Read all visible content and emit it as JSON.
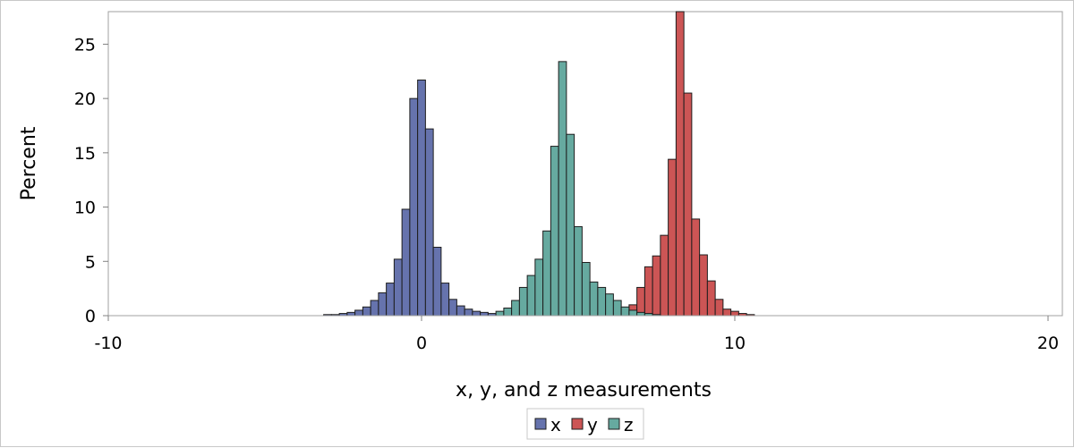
{
  "chart_data": {
    "type": "bar",
    "xlabel": "x, y, and z measurements",
    "ylabel": "Percent",
    "xlim": [
      -10,
      20
    ],
    "ylim": [
      0,
      28
    ],
    "x_ticks": [
      -10,
      0,
      10,
      20
    ],
    "y_ticks": [
      0,
      5,
      10,
      15,
      20,
      25
    ],
    "bin_width": 0.25,
    "legend_position": "bottom-center",
    "grid": false,
    "series": [
      {
        "name": "x",
        "color": "#6673ad",
        "bins": [
          {
            "x": -3.0,
            "y": 0.1
          },
          {
            "x": -2.75,
            "y": 0.1
          },
          {
            "x": -2.5,
            "y": 0.2
          },
          {
            "x": -2.25,
            "y": 0.3
          },
          {
            "x": -2.0,
            "y": 0.5
          },
          {
            "x": -1.75,
            "y": 0.8
          },
          {
            "x": -1.5,
            "y": 1.4
          },
          {
            "x": -1.25,
            "y": 2.1
          },
          {
            "x": -1.0,
            "y": 3.0
          },
          {
            "x": -0.75,
            "y": 5.2
          },
          {
            "x": -0.5,
            "y": 9.8
          },
          {
            "x": -0.25,
            "y": 20.0
          },
          {
            "x": 0.0,
            "y": 21.7
          },
          {
            "x": 0.25,
            "y": 17.2
          },
          {
            "x": 0.5,
            "y": 6.3
          },
          {
            "x": 0.75,
            "y": 3.0
          },
          {
            "x": 1.0,
            "y": 1.5
          },
          {
            "x": 1.25,
            "y": 0.9
          },
          {
            "x": 1.5,
            "y": 0.6
          },
          {
            "x": 1.75,
            "y": 0.4
          },
          {
            "x": 2.0,
            "y": 0.3
          },
          {
            "x": 2.25,
            "y": 0.2
          },
          {
            "x": 2.5,
            "y": 0.1
          }
        ]
      },
      {
        "name": "y",
        "color": "#cc5555",
        "bins": [
          {
            "x": 6.25,
            "y": 0.2
          },
          {
            "x": 6.5,
            "y": 0.4
          },
          {
            "x": 6.75,
            "y": 1.0
          },
          {
            "x": 7.0,
            "y": 2.6
          },
          {
            "x": 7.25,
            "y": 4.5
          },
          {
            "x": 7.5,
            "y": 5.5
          },
          {
            "x": 7.75,
            "y": 7.4
          },
          {
            "x": 8.0,
            "y": 14.4
          },
          {
            "x": 8.25,
            "y": 28.0
          },
          {
            "x": 8.5,
            "y": 20.5
          },
          {
            "x": 8.75,
            "y": 8.9
          },
          {
            "x": 9.0,
            "y": 5.6
          },
          {
            "x": 9.25,
            "y": 3.2
          },
          {
            "x": 9.5,
            "y": 1.5
          },
          {
            "x": 9.75,
            "y": 0.6
          },
          {
            "x": 10.0,
            "y": 0.4
          },
          {
            "x": 10.25,
            "y": 0.2
          },
          {
            "x": 10.5,
            "y": 0.1
          }
        ]
      },
      {
        "name": "z",
        "color": "#66aaa0",
        "bins": [
          {
            "x": 2.5,
            "y": 0.4
          },
          {
            "x": 2.75,
            "y": 0.7
          },
          {
            "x": 3.0,
            "y": 1.4
          },
          {
            "x": 3.25,
            "y": 2.6
          },
          {
            "x": 3.5,
            "y": 3.7
          },
          {
            "x": 3.75,
            "y": 5.2
          },
          {
            "x": 4.0,
            "y": 7.8
          },
          {
            "x": 4.25,
            "y": 15.6
          },
          {
            "x": 4.5,
            "y": 23.4
          },
          {
            "x": 4.75,
            "y": 16.7
          },
          {
            "x": 5.0,
            "y": 8.2
          },
          {
            "x": 5.25,
            "y": 4.9
          },
          {
            "x": 5.5,
            "y": 3.1
          },
          {
            "x": 5.75,
            "y": 2.6
          },
          {
            "x": 6.0,
            "y": 2.0
          },
          {
            "x": 6.25,
            "y": 1.4
          },
          {
            "x": 6.5,
            "y": 0.8
          },
          {
            "x": 6.75,
            "y": 0.5
          },
          {
            "x": 7.0,
            "y": 0.3
          },
          {
            "x": 7.25,
            "y": 0.2
          },
          {
            "x": 7.5,
            "y": 0.1
          }
        ]
      }
    ]
  }
}
